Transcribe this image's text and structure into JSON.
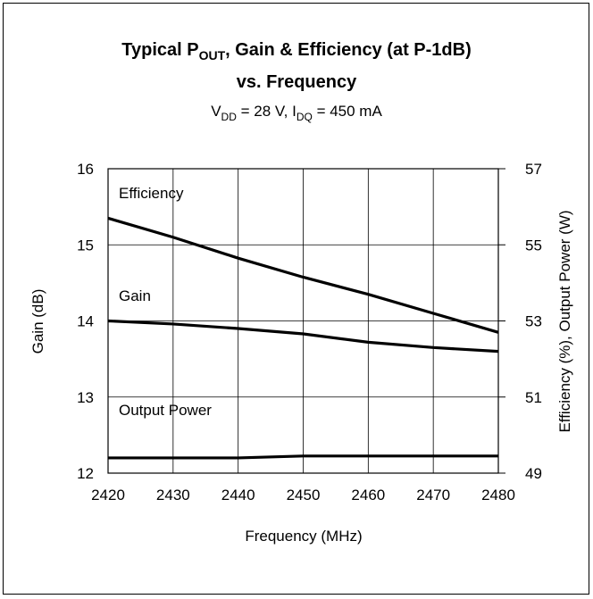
{
  "chart_data": {
    "type": "line",
    "title": [
      "Typical P",
      "OUT",
      ", Gain & Efficiency (at P-1dB)",
      "vs. Frequency"
    ],
    "subtitle": [
      "V",
      "DD",
      " = 28 V, I",
      "DQ",
      " = 450 mA"
    ],
    "xlabel": "Frequency (MHz)",
    "ylabel": "Gain (dB)",
    "y2label": "Efficiency (%), Output Power (W)",
    "x": [
      2420,
      2430,
      2440,
      2450,
      2460,
      2470,
      2480
    ],
    "xlim": [
      2420,
      2480
    ],
    "xticks": [
      2420,
      2430,
      2440,
      2450,
      2460,
      2470,
      2480
    ],
    "ylim": [
      12,
      16
    ],
    "yticks": [
      12,
      13,
      14,
      15,
      16
    ],
    "y2lim": [
      49,
      57
    ],
    "y2ticks": [
      49,
      51,
      53,
      55,
      57
    ],
    "grid": true,
    "series": [
      {
        "name": "Efficiency",
        "color": "#000000",
        "axis": "y2",
        "values": [
          55.7,
          55.2,
          54.65,
          54.15,
          53.7,
          53.2,
          52.7
        ]
      },
      {
        "name": "Gain",
        "color": "#000000",
        "axis": "y",
        "values": [
          14.0,
          13.96,
          13.9,
          13.83,
          13.72,
          13.65,
          13.6
        ]
      },
      {
        "name": "Output Power",
        "color": "#000000",
        "axis": "y2",
        "values": [
          49.4,
          49.4,
          49.4,
          49.45,
          49.45,
          49.45,
          49.45
        ]
      }
    ]
  }
}
